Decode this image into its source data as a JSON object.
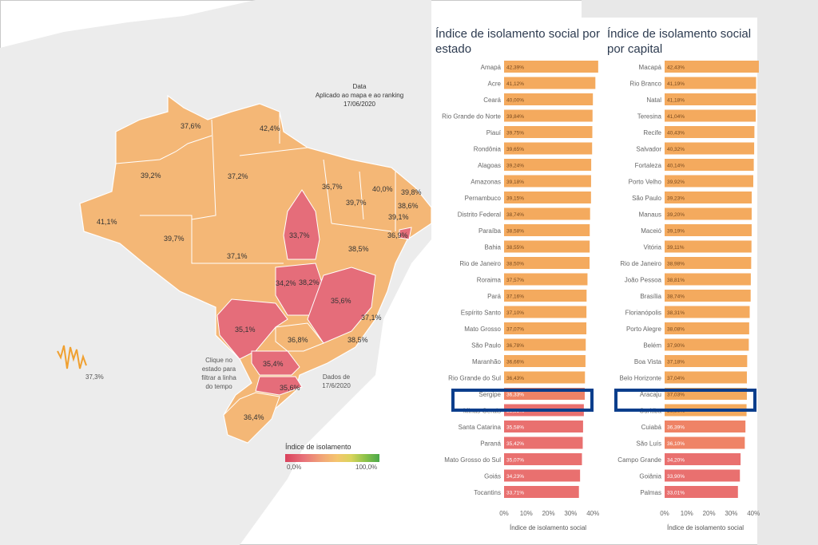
{
  "map": {
    "date_title": "Data",
    "date_subtitle": "Aplicado ao mapa e ao ranking",
    "date_value": "17/06/2020",
    "click_hint": [
      "Clique no",
      "estado para",
      "filtrar a linha",
      "do tempo"
    ],
    "dados_note": [
      "Dados de",
      "17/6/2020"
    ],
    "side_value": "37,3%",
    "legend_title": "Índice de isolamento",
    "legend_min": "0,0%",
    "legend_max": "100,0%",
    "state_labels": [
      "37,6%",
      "42,4%",
      "39,2%",
      "37,2%",
      "36,7%",
      "40,0%",
      "39,8%",
      "39,7%",
      "38,6%",
      "39,1%",
      "41,1%",
      "33,7%",
      "36,9%",
      "39,7%",
      "37,1%",
      "38,5%",
      "34,2%",
      "38,2%",
      "35,6%",
      "37,1%",
      "35,1%",
      "36,8%",
      "38,5%",
      "35,4%",
      "35,6%",
      "36,4%"
    ]
  },
  "chart_data": [
    {
      "type": "bar",
      "title": "Índice de isolamento social por estado",
      "xlabel": "Índice de isolamento social",
      "xlim": [
        0,
        40
      ],
      "xticks": [
        "0%",
        "10%",
        "20%",
        "30%",
        "40%"
      ],
      "categories": [
        "Amapá",
        "Acre",
        "Ceará",
        "Rio Grande do Norte",
        "Piauí",
        "Rondônia",
        "Alagoas",
        "Amazonas",
        "Pernambuco",
        "Distrito Federal",
        "Paraíba",
        "Bahia",
        "Rio de Janeiro",
        "Roraima",
        "Pará",
        "Espírito Santo",
        "Mato Grosso",
        "São Paulo",
        "Maranhão",
        "Rio Grande do Sul",
        "Sergipe",
        "Minas Gerais",
        "Santa Catarina",
        "Paraná",
        "Mato Grosso do Sul",
        "Goiás",
        "Tocantins"
      ],
      "values": [
        42.39,
        41.12,
        40.0,
        39.84,
        39.75,
        39.65,
        39.24,
        39.18,
        39.15,
        38.74,
        38.58,
        38.55,
        38.5,
        37.57,
        37.16,
        37.1,
        37.07,
        36.78,
        36.66,
        36.43,
        36.33,
        35.93,
        35.58,
        35.42,
        35.07,
        34.23,
        33.71
      ],
      "value_labels": [
        "42,39%",
        "41,12%",
        "40,00%",
        "39,84%",
        "39,75%",
        "39,65%",
        "39,24%",
        "39,18%",
        "39,15%",
        "38,74%",
        "38,58%",
        "38,55%",
        "38,50%",
        "37,57%",
        "37,16%",
        "37,10%",
        "37,07%",
        "36,78%",
        "36,66%",
        "36,43%",
        "36,33%",
        "35,93%",
        "35,58%",
        "35,42%",
        "35,07%",
        "34,23%",
        "33,71%"
      ],
      "highlight": "Sergipe"
    },
    {
      "type": "bar",
      "title": "Índice de isolamento social por capital",
      "xlabel": "Índice de isolamento social",
      "xlim": [
        0,
        40
      ],
      "xticks": [
        "0%",
        "10%",
        "20%",
        "30%",
        "40%"
      ],
      "categories": [
        "Macapá",
        "Rio Branco",
        "Natal",
        "Teresina",
        "Recife",
        "Salvador",
        "Fortaleza",
        "Porto Velho",
        "São Paulo",
        "Manaus",
        "Maceió",
        "Vitória",
        "Rio de Janeiro",
        "João Pessoa",
        "Brasília",
        "Florianópolis",
        "Porto Alegre",
        "Belém",
        "Boa Vista",
        "Belo Horizonte",
        "Aracaju",
        "Curitiba",
        "Cuiabá",
        "São Luís",
        "Campo Grande",
        "Goiânia",
        "Palmas"
      ],
      "values": [
        42.43,
        41.19,
        41.18,
        41.04,
        40.43,
        40.32,
        40.14,
        39.92,
        39.23,
        39.2,
        39.19,
        39.11,
        38.98,
        38.81,
        38.74,
        38.31,
        38.08,
        37.9,
        37.18,
        37.04,
        37.03,
        36.9,
        36.39,
        36.1,
        34.2,
        33.9,
        33.01
      ],
      "value_labels": [
        "42,43%",
        "41,19%",
        "41,18%",
        "41,04%",
        "40,43%",
        "40,32%",
        "40,14%",
        "39,92%",
        "39,23%",
        "39,20%",
        "39,19%",
        "39,11%",
        "38,98%",
        "38,81%",
        "38,74%",
        "38,31%",
        "38,08%",
        "37,90%",
        "37,18%",
        "37,04%",
        "37,03%",
        "36,90%",
        "36,39%",
        "36,10%",
        "34,20%",
        "33,90%",
        "33,01%"
      ],
      "highlight": "Aracaju"
    }
  ]
}
